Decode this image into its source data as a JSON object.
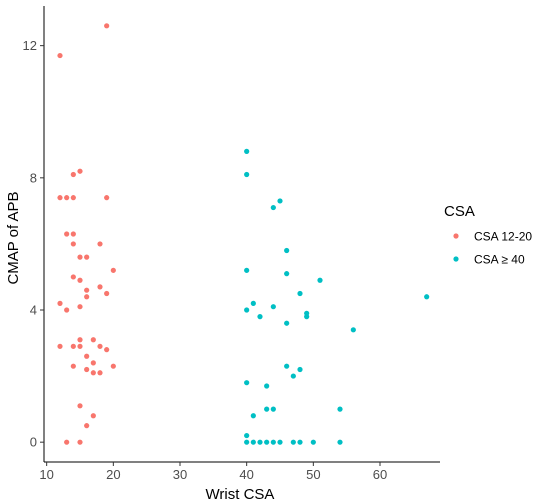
{
  "chart_data": {
    "type": "scatter",
    "title": "",
    "xlabel": "Wrist CSA",
    "ylabel": "CMAP of APB",
    "xlim": [
      9.6,
      69.0
    ],
    "ylim": [
      -0.6,
      13.2
    ],
    "xticks": [
      10,
      20,
      30,
      40,
      50,
      60
    ],
    "yticks": [
      0,
      4,
      8,
      12
    ],
    "grid": false,
    "legend": {
      "title": "CSA",
      "position": "right"
    },
    "series": [
      {
        "name": "CSA 12-20",
        "color": "#F8766D",
        "points": [
          [
            12,
            11.7
          ],
          [
            19,
            12.6
          ],
          [
            15,
            8.2
          ],
          [
            14,
            8.1
          ],
          [
            12,
            7.4
          ],
          [
            13,
            7.4
          ],
          [
            14,
            7.4
          ],
          [
            19,
            7.4
          ],
          [
            13,
            6.3
          ],
          [
            14,
            6.3
          ],
          [
            14,
            6.0
          ],
          [
            18,
            6.0
          ],
          [
            15,
            5.6
          ],
          [
            16,
            5.6
          ],
          [
            14,
            5.0
          ],
          [
            15,
            4.9
          ],
          [
            20,
            5.2
          ],
          [
            16,
            4.6
          ],
          [
            18,
            4.7
          ],
          [
            19,
            4.5
          ],
          [
            16,
            4.4
          ],
          [
            12,
            4.2
          ],
          [
            15,
            4.1
          ],
          [
            13,
            4.0
          ],
          [
            17,
            3.1
          ],
          [
            15,
            3.1
          ],
          [
            12,
            2.9
          ],
          [
            14,
            2.9
          ],
          [
            15,
            2.9
          ],
          [
            18,
            2.9
          ],
          [
            19,
            2.8
          ],
          [
            16,
            2.6
          ],
          [
            17,
            2.4
          ],
          [
            14,
            2.3
          ],
          [
            20,
            2.3
          ],
          [
            16,
            2.2
          ],
          [
            17,
            2.1
          ],
          [
            18,
            2.1
          ],
          [
            15,
            1.1
          ],
          [
            17,
            0.8
          ],
          [
            16,
            0.5
          ],
          [
            13,
            0.0
          ],
          [
            15,
            0.0
          ]
        ]
      },
      {
        "name": "CSA ≥ 40",
        "color": "#00BFC4",
        "points": [
          [
            40,
            8.8
          ],
          [
            40,
            8.1
          ],
          [
            45,
            7.3
          ],
          [
            44,
            7.1
          ],
          [
            46,
            5.8
          ],
          [
            40,
            5.2
          ],
          [
            46,
            5.1
          ],
          [
            51,
            4.9
          ],
          [
            48,
            4.5
          ],
          [
            41,
            4.2
          ],
          [
            44,
            4.1
          ],
          [
            40,
            4.0
          ],
          [
            49,
            3.9
          ],
          [
            49,
            3.8
          ],
          [
            42,
            3.8
          ],
          [
            46,
            3.6
          ],
          [
            56,
            3.4
          ],
          [
            67,
            4.4
          ],
          [
            46,
            2.3
          ],
          [
            48,
            2.2
          ],
          [
            47,
            2.0
          ],
          [
            40,
            1.8
          ],
          [
            43,
            1.7
          ],
          [
            44,
            1.0
          ],
          [
            43,
            1.0
          ],
          [
            54,
            1.0
          ],
          [
            41,
            0.8
          ],
          [
            40,
            0.2
          ],
          [
            40,
            0.0
          ],
          [
            41,
            0.0
          ],
          [
            42,
            0.0
          ],
          [
            43,
            0.0
          ],
          [
            44,
            0.0
          ],
          [
            45,
            0.0
          ],
          [
            47,
            0.0
          ],
          [
            48,
            0.0
          ],
          [
            50,
            0.0
          ],
          [
            54,
            0.0
          ]
        ]
      }
    ]
  }
}
